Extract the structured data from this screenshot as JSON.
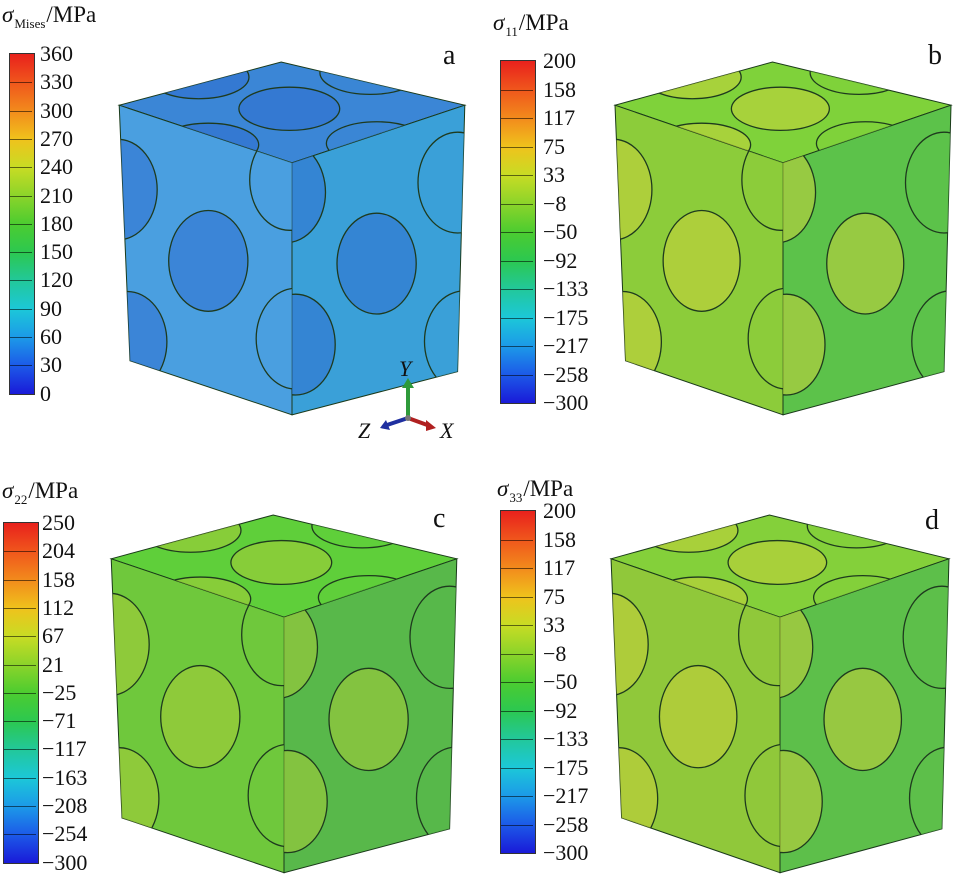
{
  "panels": [
    {
      "id": "a",
      "letter": "a",
      "symbol": "σ",
      "subscript": "Mises",
      "unit": "/MPa",
      "ticks": [
        "360",
        "330",
        "300",
        "270",
        "240",
        "210",
        "180",
        "150",
        "120",
        "90",
        "60",
        "30",
        "0"
      ],
      "face_colors": {
        "top": "#3b86d6",
        "front": "#4a9fe0",
        "right": "#3aa0d8",
        "grain_alt": "#2f6fd0"
      }
    },
    {
      "id": "b",
      "letter": "b",
      "symbol": "σ",
      "subscript": "11",
      "unit": "/MPa",
      "ticks": [
        "200",
        "158",
        "117",
        "75",
        "33",
        "−8",
        "−50",
        "−92",
        "−133",
        "−175",
        "−217",
        "−258",
        "−300"
      ],
      "face_colors": {
        "top": "#7fd23a",
        "front": "#8ccc3a",
        "right": "#5cc24a",
        "grain_alt": "#c8d23c"
      }
    },
    {
      "id": "c",
      "letter": "c",
      "symbol": "σ",
      "subscript": "22",
      "unit": "/MPa",
      "ticks": [
        "250",
        "204",
        "158",
        "112",
        "67",
        "21",
        "−25",
        "−71",
        "−117",
        "−163",
        "−208",
        "−254",
        "−300"
      ],
      "face_colors": {
        "top": "#5fcf3a",
        "front": "#6fc83c",
        "right": "#58b84a",
        "grain_alt": "#a8cc38"
      }
    },
    {
      "id": "d",
      "letter": "d",
      "symbol": "σ",
      "subscript": "33",
      "unit": "/MPa",
      "ticks": [
        "200",
        "158",
        "117",
        "75",
        "33",
        "−8",
        "−50",
        "−92",
        "−133",
        "−175",
        "−217",
        "−258",
        "−300"
      ],
      "face_colors": {
        "top": "#84d03a",
        "front": "#90c83a",
        "right": "#5dbf4a",
        "grain_alt": "#c6cf3a"
      }
    }
  ],
  "axes": {
    "y": "Y",
    "z": "Z",
    "x": "X",
    "y_color": "#2e9a3a",
    "z_color": "#1f2fa0",
    "x_color": "#b02020"
  },
  "colorbar_stops": [
    "#e8211c",
    "#f0561c",
    "#f28a1c",
    "#f0c21c",
    "#c8dc24",
    "#8cd42a",
    "#4ccc30",
    "#2cc850",
    "#22c89a",
    "#1cc8d8",
    "#1c9ae8",
    "#1c5ae8",
    "#1a1ad8"
  ]
}
